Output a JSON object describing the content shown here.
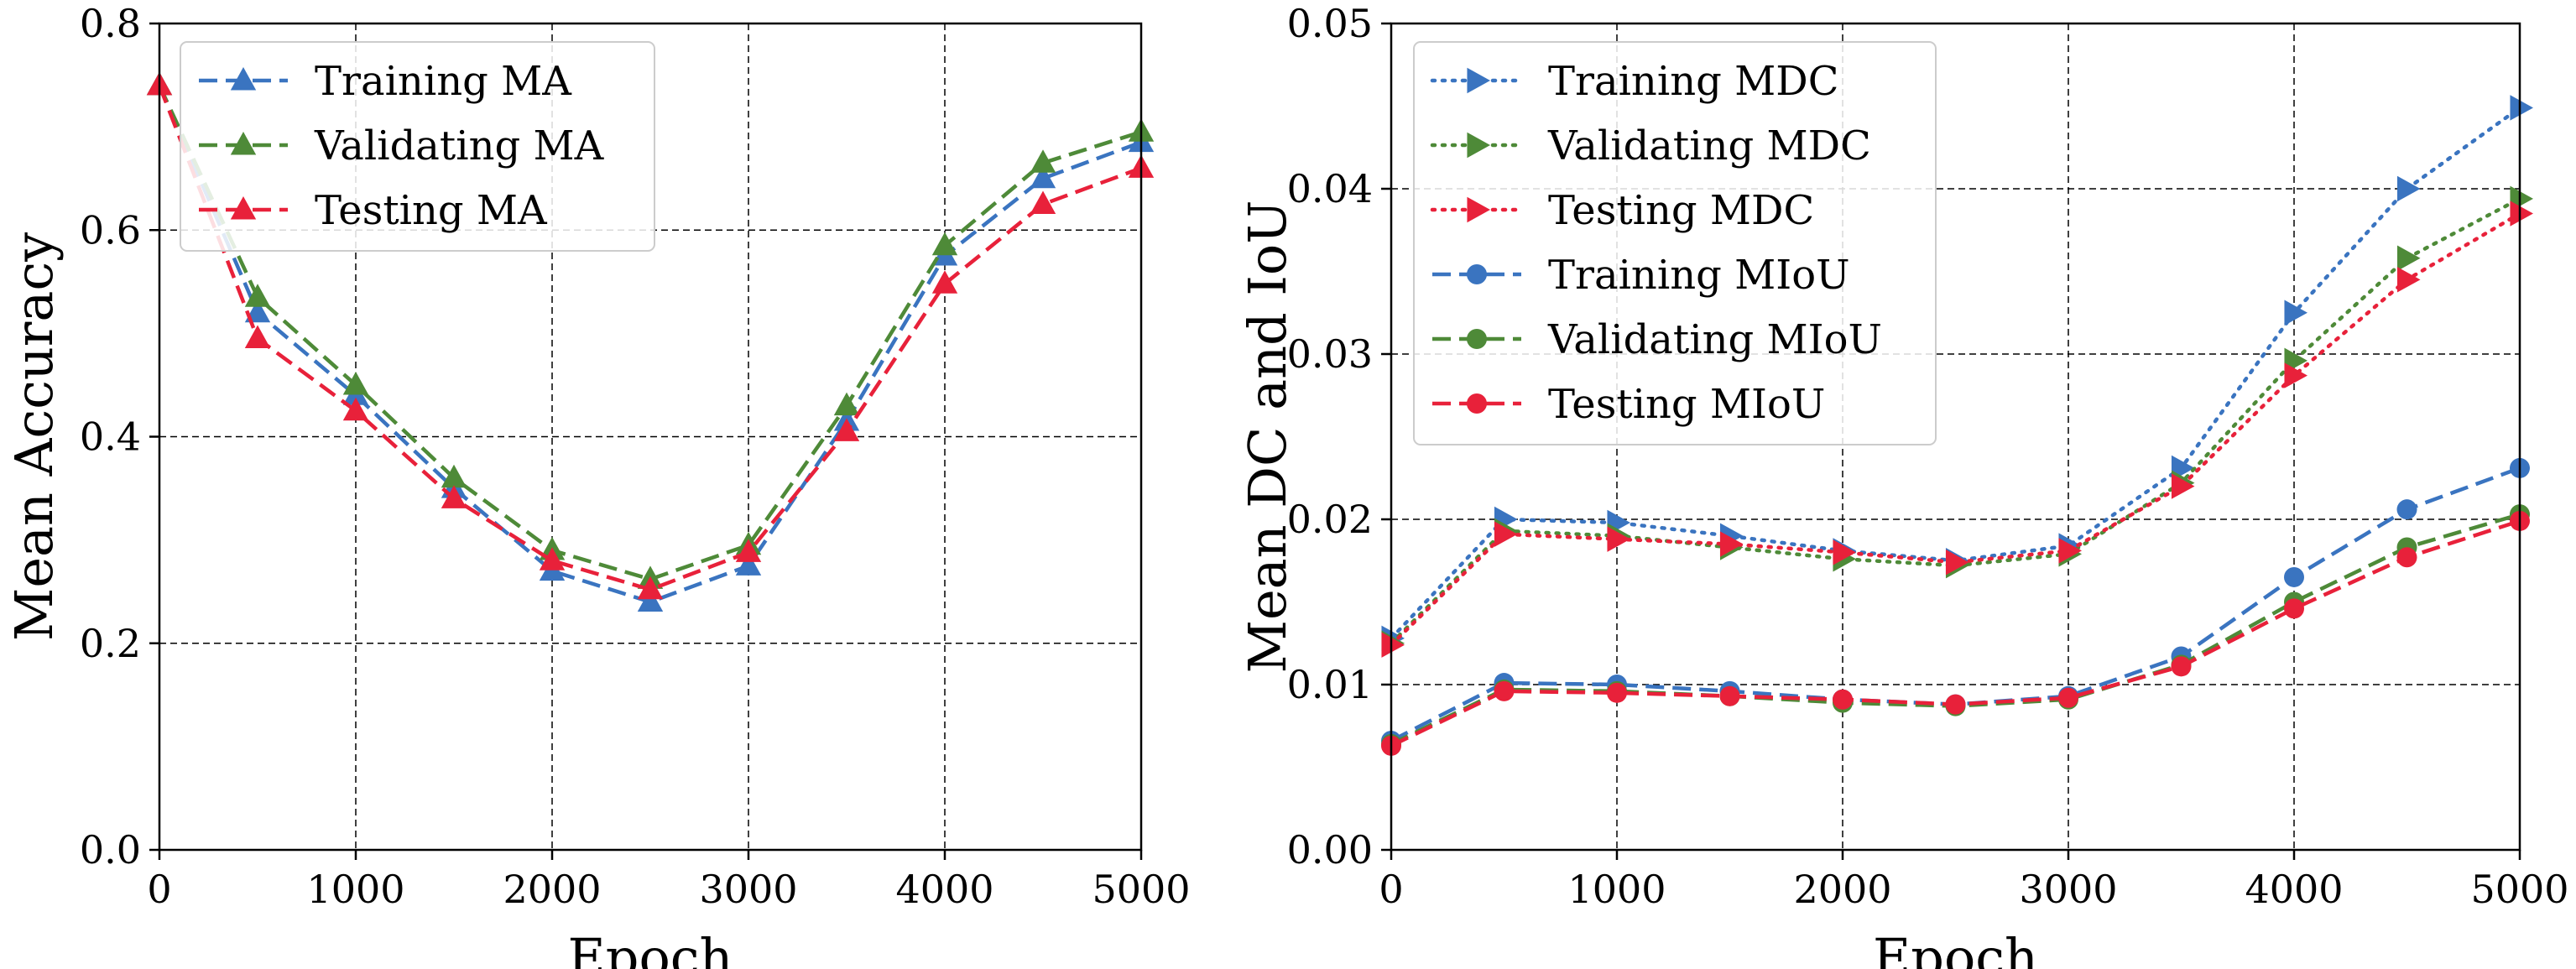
{
  "chart_data": [
    {
      "type": "line",
      "title": "",
      "xlabel": "Epoch",
      "ylabel": "Mean Accuracy",
      "xlim": [
        0,
        5000
      ],
      "ylim": [
        0,
        0.8
      ],
      "x_ticks": [
        "0",
        "1000",
        "2000",
        "3000",
        "4000",
        "5000"
      ],
      "y_ticks": [
        "0.0",
        "0.2",
        "0.4",
        "0.6",
        "0.8"
      ],
      "grid": true,
      "legend_position": "top-left",
      "x": [
        0,
        500,
        1000,
        1500,
        2000,
        2500,
        3000,
        3500,
        4000,
        4500,
        5000
      ],
      "series": [
        {
          "name": "Training MA",
          "color": "#3a74c0",
          "linestyle": "dashed",
          "marker": "triangle-up",
          "values": [
            0.74,
            0.52,
            0.44,
            0.35,
            0.27,
            0.24,
            0.275,
            0.415,
            0.575,
            0.65,
            0.685
          ]
        },
        {
          "name": "Validating MA",
          "color": "#4e8a38",
          "linestyle": "dashed",
          "marker": "triangle-up",
          "values": [
            0.74,
            0.535,
            0.45,
            0.36,
            0.29,
            0.262,
            0.295,
            0.43,
            0.585,
            0.665,
            0.695
          ]
        },
        {
          "name": "Testing MA",
          "color": "#e8213a",
          "linestyle": "dashed",
          "marker": "triangle-up",
          "values": [
            0.74,
            0.495,
            0.425,
            0.34,
            0.28,
            0.252,
            0.288,
            0.405,
            0.548,
            0.625,
            0.66
          ]
        }
      ]
    },
    {
      "type": "line",
      "title": "",
      "xlabel": "Epoch",
      "ylabel": "Mean DC and IoU",
      "xlim": [
        0,
        5000
      ],
      "ylim": [
        0,
        0.05
      ],
      "x_ticks": [
        "0",
        "1000",
        "2000",
        "3000",
        "4000",
        "5000"
      ],
      "y_ticks": [
        "0.00",
        "0.01",
        "0.02",
        "0.03",
        "0.04",
        "0.05"
      ],
      "grid": true,
      "legend_position": "top-left",
      "x": [
        0,
        500,
        1000,
        1500,
        2000,
        2500,
        3000,
        3500,
        4000,
        4500,
        5000
      ],
      "series": [
        {
          "name": "Training MDC",
          "color": "#3a74c0",
          "linestyle": "dotted",
          "marker": "triangle-right",
          "values": [
            0.0128,
            0.02,
            0.0198,
            0.019,
            0.0181,
            0.0175,
            0.0184,
            0.0231,
            0.0325,
            0.04,
            0.0449
          ]
        },
        {
          "name": "Validating MDC",
          "color": "#4e8a38",
          "linestyle": "dotted",
          "marker": "triangle-right",
          "values": [
            0.0125,
            0.0193,
            0.019,
            0.0183,
            0.0176,
            0.0172,
            0.0179,
            0.0222,
            0.0296,
            0.0358,
            0.0394
          ]
        },
        {
          "name": "Testing MDC",
          "color": "#e8213a",
          "linestyle": "dotted",
          "marker": "triangle-right",
          "values": [
            0.0124,
            0.0191,
            0.0188,
            0.0185,
            0.018,
            0.0174,
            0.0181,
            0.022,
            0.0287,
            0.0345,
            0.0385
          ]
        },
        {
          "name": "Training MIoU",
          "color": "#3a74c0",
          "linestyle": "dashed",
          "marker": "circle",
          "values": [
            0.0066,
            0.0101,
            0.01,
            0.0096,
            0.0091,
            0.0088,
            0.0093,
            0.0117,
            0.0165,
            0.0206,
            0.0231
          ]
        },
        {
          "name": "Validating MIoU",
          "color": "#4e8a38",
          "linestyle": "dashed",
          "marker": "circle",
          "values": [
            0.0064,
            0.0097,
            0.0096,
            0.0093,
            0.0089,
            0.0087,
            0.0091,
            0.0112,
            0.015,
            0.0183,
            0.0203
          ]
        },
        {
          "name": "Testing MIoU",
          "color": "#e8213a",
          "linestyle": "dashed",
          "marker": "circle",
          "values": [
            0.0063,
            0.0096,
            0.0095,
            0.0093,
            0.0091,
            0.0088,
            0.0092,
            0.0111,
            0.0146,
            0.0177,
            0.0199
          ]
        }
      ]
    }
  ]
}
